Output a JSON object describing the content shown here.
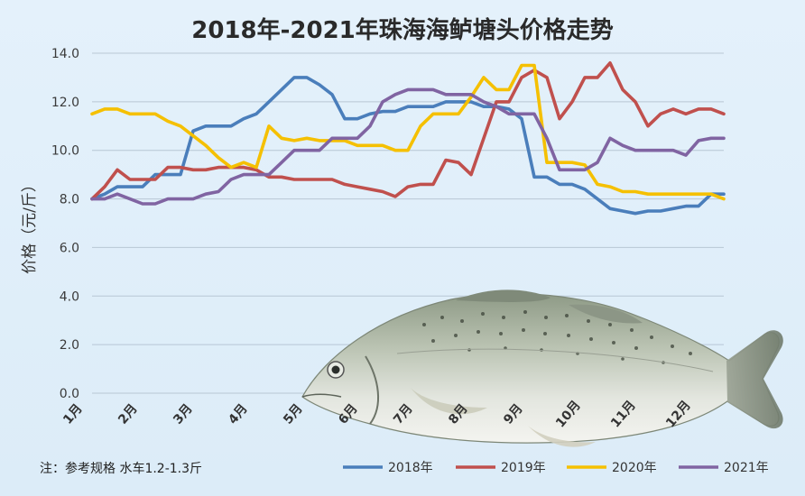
{
  "chart_data": {
    "type": "line",
    "title": "2018年-2021年珠海海鲈塘头价格走势",
    "ylabel": "价格（元/斤）",
    "ylim": [
      0,
      14
    ],
    "yticks": [
      "0.0",
      "2.0",
      "4.0",
      "6.0",
      "8.0",
      "10.0",
      "12.0",
      "14.0"
    ],
    "x_ticks": [
      "1月",
      "2月",
      "3月",
      "4月",
      "5月",
      "6月",
      "7月",
      "8月",
      "9月",
      "10月",
      "11月",
      "12月"
    ],
    "grid": true,
    "legend_position": "bottom",
    "note": "注：参考规格  水车1.2-1.3斤",
    "series": [
      {
        "name": "2018年",
        "color": "#4a7ebb",
        "values": [
          8.0,
          8.2,
          8.5,
          8.5,
          8.5,
          9.0,
          9.0,
          9.0,
          10.8,
          11.0,
          11.0,
          11.0,
          11.3,
          11.5,
          12.0,
          12.5,
          13.0,
          13.0,
          12.7,
          12.3,
          11.3,
          11.3,
          11.5,
          11.6,
          11.6,
          11.8,
          11.8,
          11.8,
          12.0,
          12.0,
          12.0,
          11.8,
          11.8,
          11.7,
          11.3,
          8.9,
          8.9,
          8.6,
          8.6,
          8.4,
          8.0,
          7.6,
          7.5,
          7.4,
          7.5,
          7.5,
          7.6,
          7.7,
          7.7,
          8.2,
          8.2
        ]
      },
      {
        "name": "2019年",
        "color": "#c0504d",
        "values": [
          8.0,
          8.5,
          9.2,
          8.8,
          8.8,
          8.8,
          9.3,
          9.3,
          9.2,
          9.2,
          9.3,
          9.3,
          9.3,
          9.2,
          8.9,
          8.9,
          8.8,
          8.8,
          8.8,
          8.8,
          8.6,
          8.5,
          8.4,
          8.3,
          8.1,
          8.5,
          8.6,
          8.6,
          9.6,
          9.5,
          9.0,
          10.5,
          12.0,
          12.0,
          13.0,
          13.3,
          13.0,
          11.3,
          12.0,
          13.0,
          13.0,
          13.6,
          12.5,
          12.0,
          11.0,
          11.5,
          11.7,
          11.5,
          11.7,
          11.7,
          11.5
        ]
      },
      {
        "name": "2020年",
        "color": "#f5c000",
        "values": [
          11.5,
          11.7,
          11.7,
          11.5,
          11.5,
          11.5,
          11.2,
          11.0,
          10.6,
          10.2,
          9.7,
          9.3,
          9.5,
          9.3,
          11.0,
          10.5,
          10.4,
          10.5,
          10.4,
          10.4,
          10.4,
          10.2,
          10.2,
          10.2,
          10.0,
          10.0,
          11.0,
          11.5,
          11.5,
          11.5,
          12.2,
          13.0,
          12.5,
          12.5,
          13.5,
          13.5,
          9.5,
          9.5,
          9.5,
          9.4,
          8.6,
          8.5,
          8.3,
          8.3,
          8.2,
          8.2,
          8.2,
          8.2,
          8.2,
          8.2,
          8.0
        ]
      },
      {
        "name": "2021年",
        "color": "#8064a2",
        "values": [
          8.0,
          8.0,
          8.2,
          8.0,
          7.8,
          7.8,
          8.0,
          8.0,
          8.0,
          8.2,
          8.3,
          8.8,
          9.0,
          9.0,
          9.0,
          9.5,
          10.0,
          10.0,
          10.0,
          10.5,
          10.5,
          10.5,
          11.0,
          12.0,
          12.3,
          12.5,
          12.5,
          12.5,
          12.3,
          12.3,
          12.3,
          12.0,
          11.8,
          11.5,
          11.5,
          11.5,
          10.5,
          9.2,
          9.2,
          9.2,
          9.5,
          10.5,
          10.2,
          10.0,
          10.0,
          10.0,
          10.0,
          9.8,
          10.4,
          10.5,
          10.5
        ]
      }
    ]
  }
}
